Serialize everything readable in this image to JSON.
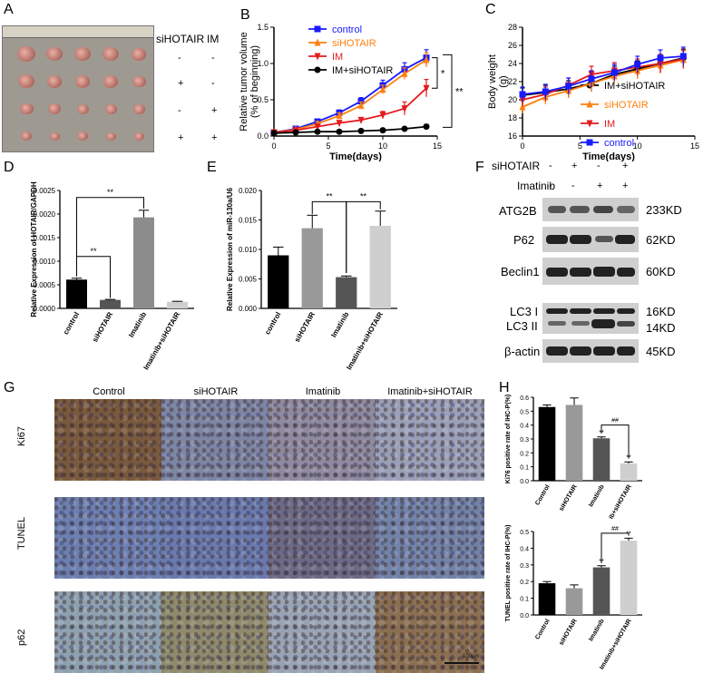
{
  "panel_letters": [
    "A",
    "B",
    "C",
    "D",
    "E",
    "F",
    "G",
    "H"
  ],
  "panel_a": {
    "col_headers": [
      "siHOTAIR",
      "IM"
    ],
    "rows": [
      [
        "-",
        "-"
      ],
      [
        "+",
        "-"
      ],
      [
        "-",
        "+"
      ],
      [
        "+",
        "+"
      ]
    ]
  },
  "panel_f": {
    "row_labels": [
      "siHOTAIR",
      "Imatinib"
    ],
    "signs": [
      [
        "-",
        "+",
        "-",
        "+"
      ],
      [
        "-",
        "-",
        "+",
        "+"
      ]
    ],
    "bands": [
      "ATG2B",
      "P62",
      "Beclin1",
      "LC3 I",
      "LC3 II",
      "β-actin"
    ],
    "sizes": [
      "233KD",
      "62KD",
      "60KD",
      "16KD",
      "14KD",
      "45KD"
    ]
  },
  "panel_g": {
    "col_headers": [
      "Control",
      "siHOTAIR",
      "Imatinib",
      "Imatinib+siHOTAIR"
    ],
    "row_labels": [
      "Ki67",
      "TUNEL",
      "p62"
    ],
    "scale_bar": "100μm"
  },
  "chart_data": [
    {
      "panel": "B",
      "type": "line",
      "xlabel": "Time(days)",
      "ylabel": "Relative tumor volume (% of beginning)",
      "xlim": [
        0,
        15
      ],
      "ylim": [
        0,
        1.5
      ],
      "xticks": [
        "0",
        "5",
        "10",
        "15"
      ],
      "yticks": [
        "0.0",
        "0.5",
        "1.0",
        "1.5"
      ],
      "x": [
        0,
        2,
        4,
        6,
        8,
        10,
        12,
        14
      ],
      "series": [
        {
          "name": "control",
          "color": "#1a1aff",
          "marker": "square",
          "values": [
            0.05,
            0.1,
            0.2,
            0.32,
            0.48,
            0.7,
            0.92,
            1.08
          ],
          "err": [
            0.01,
            0.02,
            0.03,
            0.04,
            0.05,
            0.07,
            0.09,
            0.11
          ]
        },
        {
          "name": "siHOTAIR",
          "color": "#ff7f0e",
          "marker": "triangle-up",
          "values": [
            0.05,
            0.09,
            0.17,
            0.28,
            0.42,
            0.64,
            0.86,
            1.05
          ],
          "err": [
            0.01,
            0.02,
            0.03,
            0.04,
            0.05,
            0.06,
            0.08,
            0.1
          ]
        },
        {
          "name": "IM",
          "color": "#e41a1c",
          "marker": "triangle-down",
          "values": [
            0.05,
            0.08,
            0.13,
            0.18,
            0.22,
            0.29,
            0.38,
            0.66
          ],
          "err": [
            0.01,
            0.02,
            0.02,
            0.03,
            0.03,
            0.05,
            0.09,
            0.12
          ]
        },
        {
          "name": "IM+siHOTAIR",
          "color": "#000000",
          "marker": "circle",
          "values": [
            0.04,
            0.05,
            0.06,
            0.06,
            0.07,
            0.08,
            0.1,
            0.13
          ],
          "err": [
            0.01,
            0.01,
            0.01,
            0.01,
            0.01,
            0.02,
            0.02,
            0.03
          ]
        }
      ],
      "annotations": [
        "*",
        "**"
      ]
    },
    {
      "panel": "C",
      "type": "line",
      "xlabel": "Time(days)",
      "ylabel": "Body weight (g)",
      "xlim": [
        0,
        15
      ],
      "ylim": [
        16,
        28
      ],
      "xticks": [
        "0",
        "5",
        "10",
        "15"
      ],
      "yticks": [
        "16",
        "18",
        "20",
        "22",
        "24",
        "26",
        "28"
      ],
      "x": [
        0,
        2,
        4,
        6,
        8,
        10,
        12,
        14
      ],
      "series": [
        {
          "name": "IM+siHOTAIR",
          "color": "#000000",
          "marker": "circle",
          "values": [
            20.5,
            20.8,
            21.2,
            21.8,
            22.8,
            23.4,
            24.0,
            24.6
          ],
          "err": [
            0.8,
            0.8,
            0.9,
            0.9,
            0.9,
            0.9,
            1.0,
            1.0
          ]
        },
        {
          "name": "siHOTAIR",
          "color": "#ff7f0e",
          "marker": "triangle-up",
          "values": [
            19.2,
            20.3,
            21.0,
            21.8,
            22.6,
            23.2,
            23.8,
            24.4
          ],
          "err": [
            0.7,
            0.8,
            0.8,
            0.9,
            0.9,
            0.9,
            0.9,
            1.0
          ]
        },
        {
          "name": "IM",
          "color": "#e41a1c",
          "marker": "triangle-down",
          "values": [
            20.0,
            20.6,
            21.6,
            22.8,
            23.2,
            23.6,
            24.0,
            24.5
          ],
          "err": [
            0.7,
            0.8,
            0.8,
            0.9,
            0.9,
            0.9,
            1.0,
            1.0
          ]
        },
        {
          "name": "control",
          "color": "#1a1aff",
          "marker": "square",
          "values": [
            20.6,
            20.9,
            21.5,
            22.3,
            23.0,
            23.9,
            24.6,
            24.8
          ],
          "err": [
            0.8,
            0.8,
            0.9,
            0.9,
            0.9,
            0.9,
            0.9,
            1.0
          ]
        }
      ]
    },
    {
      "panel": "D",
      "type": "bar",
      "ylabel": "Relative Expression of HOTAIR/GAPDH",
      "ylim": [
        0,
        0.0025
      ],
      "yticks": [
        "0.0000",
        "0.0005",
        "0.0010",
        "0.0015",
        "0.0020",
        "0.0025"
      ],
      "categories": [
        "control",
        "siHOTAIR",
        "Imatinib",
        "Imatinib+siHOTAIR"
      ],
      "values": [
        0.00061,
        0.00018,
        0.00193,
        0.00014
      ],
      "err": [
        3e-05,
        1e-05,
        0.00015,
        1e-05
      ],
      "colors": [
        "#000000",
        "#555555",
        "#8c8c8c",
        "#cfcfcf"
      ],
      "annotations": [
        "**",
        "**"
      ]
    },
    {
      "panel": "E",
      "type": "bar",
      "ylabel": "Relative Expression of miR-130a/U6",
      "ylim": [
        0,
        0.02
      ],
      "yticks": [
        "0.000",
        "0.005",
        "0.010",
        "0.015",
        "0.020"
      ],
      "categories": [
        "control",
        "siHOTAIR",
        "Imatinib",
        "Imatinib+siHOTAIR"
      ],
      "values": [
        0.009,
        0.0136,
        0.0053,
        0.014
      ],
      "err": [
        0.0014,
        0.0022,
        0.0002,
        0.0025
      ],
      "colors": [
        "#000000",
        "#999999",
        "#555555",
        "#cfcfcf"
      ],
      "annotations": [
        "**",
        "**"
      ]
    },
    {
      "panel": "H-top",
      "type": "bar",
      "ylabel": "Ki76 positive rate of IHC-P(%)",
      "ylim": [
        0,
        0.6
      ],
      "yticks": [
        "0.0",
        "0.1",
        "0.2",
        "0.3",
        "0.4",
        "0.5",
        "0.6"
      ],
      "categories": [
        "Control",
        "siHOTAIR",
        "Imatinib",
        "Imatinib+siHOTAIR"
      ],
      "values": [
        0.53,
        0.545,
        0.305,
        0.125
      ],
      "err": [
        0.015,
        0.05,
        0.01,
        0.01
      ],
      "colors": [
        "#000000",
        "#999999",
        "#555555",
        "#cfcfcf"
      ],
      "annotations": [
        "**",
        "**",
        "##"
      ]
    },
    {
      "panel": "H-bottom",
      "type": "bar",
      "ylabel": "TUNEL positive rate of IHC-P(%)",
      "ylim": [
        0,
        0.5
      ],
      "yticks": [
        "0.0",
        "0.1",
        "0.2",
        "0.3",
        "0.4",
        "0.5"
      ],
      "categories": [
        "Control",
        "siHOTAIR",
        "Imatinib",
        "Imatinib+siHOTAIR"
      ],
      "values": [
        0.19,
        0.16,
        0.285,
        0.445
      ],
      "err": [
        0.01,
        0.02,
        0.01,
        0.015
      ],
      "colors": [
        "#000000",
        "#999999",
        "#555555",
        "#cfcfcf"
      ],
      "annotations": [
        "**",
        "**",
        "##"
      ]
    }
  ]
}
